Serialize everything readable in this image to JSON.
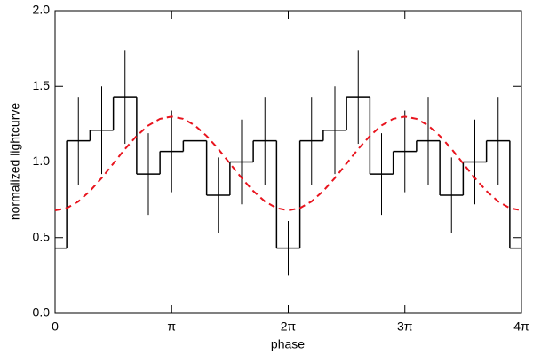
{
  "chart_data": {
    "type": "step",
    "xlabel": "phase",
    "ylabel": "normalized lightcurve",
    "xlim": [
      0,
      4
    ],
    "ylim": [
      0,
      2
    ],
    "xticks": [
      0,
      {
        "value": 1,
        "label": "π"
      },
      {
        "value": 2,
        "label": "2π"
      },
      {
        "value": 3,
        "label": "3π"
      },
      {
        "value": 4,
        "label": "4π"
      }
    ],
    "yticks": [
      {
        "value": 0,
        "label": "0.0"
      },
      0.5,
      {
        "value": 1,
        "label": "1.0"
      },
      1.5,
      {
        "value": 2,
        "label": "2.0"
      }
    ],
    "bin_width": 0.2,
    "series": [
      {
        "type": "step",
        "color": "#000000",
        "x": [
          0,
          0.2,
          0.4,
          0.6,
          0.8,
          1.0,
          1.2,
          1.4,
          1.6,
          1.8,
          2.0,
          2.2,
          2.4,
          2.6,
          2.8,
          3.0,
          3.2,
          3.4,
          3.6,
          3.8,
          4.0
        ],
        "values": [
          0.43,
          1.14,
          1.21,
          1.43,
          0.92,
          1.07,
          1.14,
          0.78,
          1.0,
          1.14,
          0.43,
          1.14,
          1.21,
          1.43,
          0.92,
          1.07,
          1.14,
          0.78,
          1.0,
          1.14,
          0.43
        ],
        "errors": [
          0.18,
          0.29,
          0.29,
          0.31,
          0.27,
          0.27,
          0.29,
          0.25,
          0.28,
          0.29,
          0.18,
          0.29,
          0.29,
          0.31,
          0.27,
          0.27,
          0.29,
          0.25,
          0.28,
          0.29,
          0.18
        ]
      },
      {
        "type": "line",
        "color": "#e8141e",
        "dashed": true,
        "x": [
          0,
          0.1,
          0.2,
          0.3,
          0.4,
          0.5,
          0.6,
          0.7,
          0.8,
          0.9,
          1.0,
          1.1,
          1.2,
          1.3,
          1.4,
          1.5,
          1.6,
          1.7,
          1.8,
          1.9,
          2.0,
          2.1,
          2.2,
          2.3,
          2.4,
          2.5,
          2.6,
          2.7,
          2.8,
          2.9,
          3.0,
          3.1,
          3.2,
          3.3,
          3.4,
          3.5,
          3.6,
          3.7,
          3.8,
          3.9,
          4.0
        ],
        "values": [
          0.68,
          0.695,
          0.739,
          0.808,
          0.894,
          0.99,
          1.086,
          1.172,
          1.241,
          1.285,
          1.3,
          1.285,
          1.241,
          1.172,
          1.086,
          0.99,
          0.894,
          0.808,
          0.739,
          0.695,
          0.68,
          0.695,
          0.739,
          0.808,
          0.894,
          0.99,
          1.086,
          1.172,
          1.241,
          1.285,
          1.3,
          1.285,
          1.241,
          1.172,
          1.086,
          0.99,
          0.894,
          0.808,
          0.739,
          0.695,
          0.68
        ]
      }
    ]
  }
}
